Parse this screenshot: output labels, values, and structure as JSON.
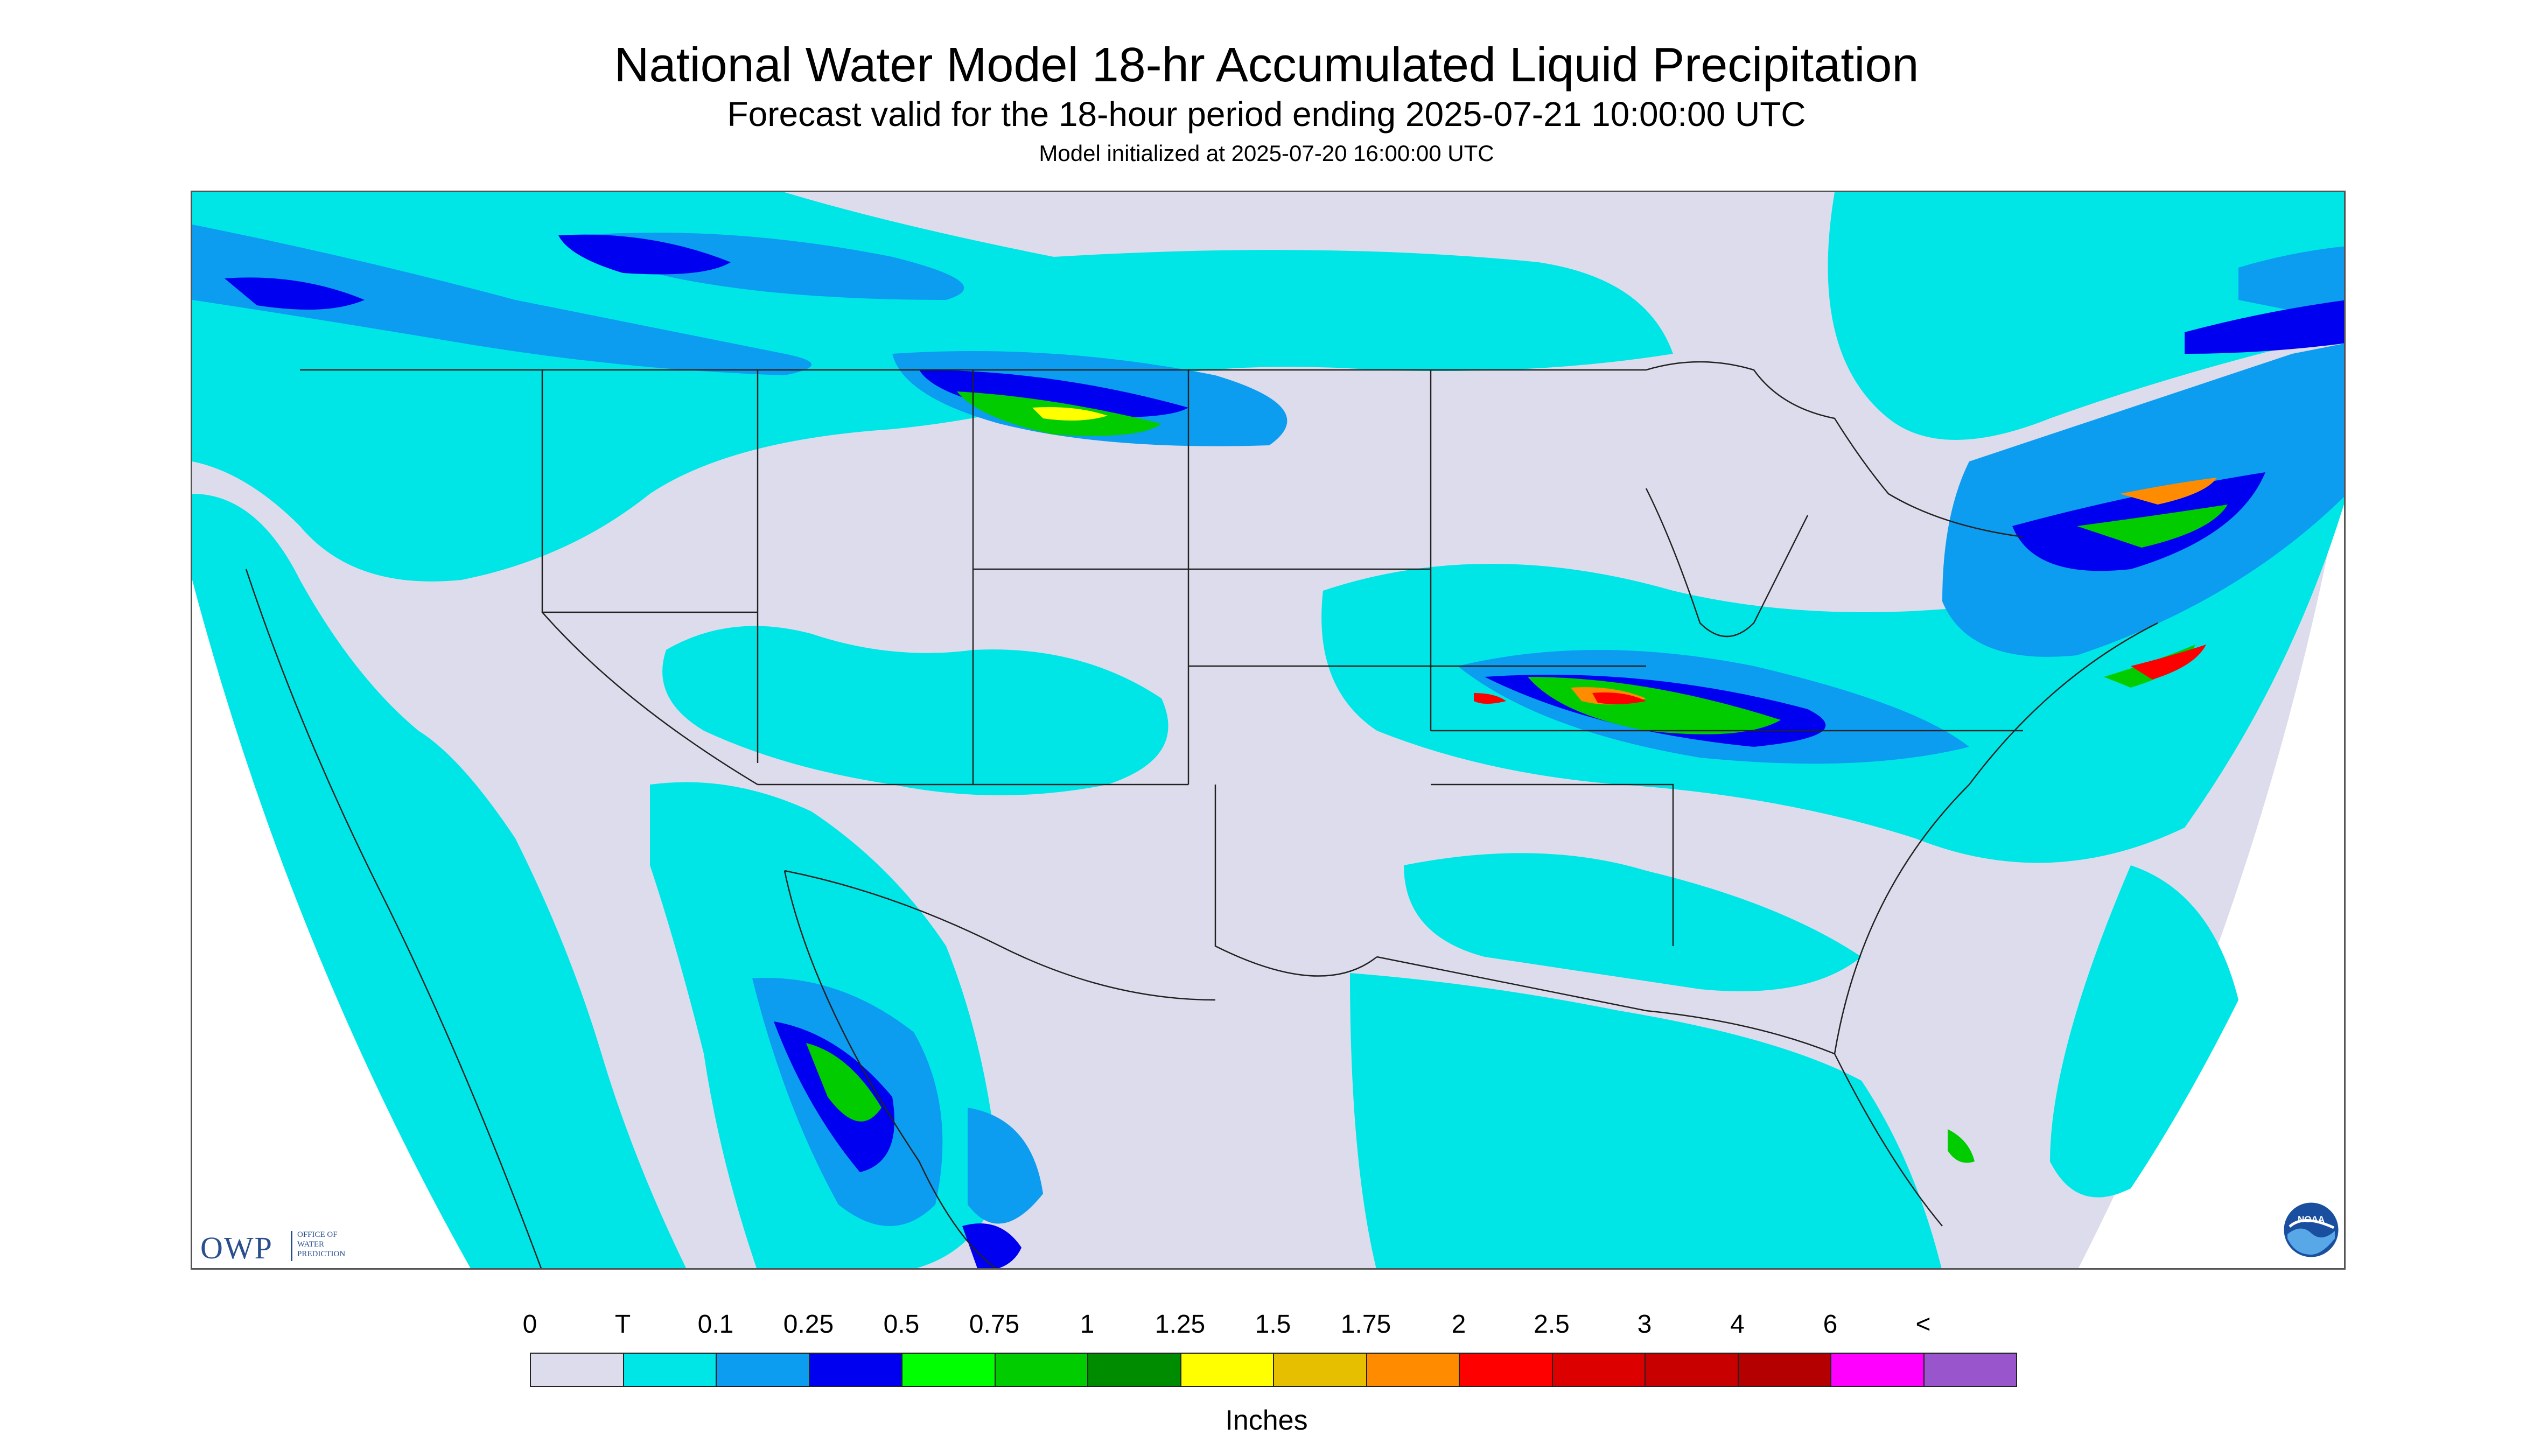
{
  "header": {
    "title": "National Water Model 18-hr Accumulated Liquid Precipitation",
    "subtitle": "Forecast valid for the 18-hour period ending 2025-07-21 10:00:00 UTC",
    "init_line": "Model initialized at 2025-07-20 16:00:00 UTC"
  },
  "logos": {
    "owp": {
      "letters": "OWP",
      "lines": [
        "OFFICE OF",
        "WATER",
        "PREDICTION"
      ]
    },
    "noaa": {
      "text": "NOAA"
    }
  },
  "legend": {
    "tick_labels": [
      "0",
      "T",
      "0.1",
      "0.25",
      "0.5",
      "0.75",
      "1",
      "1.25",
      "1.5",
      "1.75",
      "2",
      "2.5",
      "3",
      "4",
      "6",
      "<"
    ],
    "colors": [
      "#dcdcec",
      "#00e6e6",
      "#0c9cf0",
      "#0000f0",
      "#00ff00",
      "#00cc00",
      "#008c00",
      "#ffff00",
      "#e6c000",
      "#ff8c00",
      "#ff0000",
      "#dc0000",
      "#c80000",
      "#b40000",
      "#ff00ff",
      "#9955cc"
    ],
    "unit": "Inches"
  },
  "map_colors": {
    "no_precip": "#dcdcec",
    "trace": "#00e6e6",
    "light": "#0c9cf0",
    "moderate": "#0000f0",
    "heavy_green": "#00cc00",
    "very_heavy_red": "#ff0000",
    "yellow": "#ffff00",
    "orange": "#ff8c00",
    "border_lines": "#222222"
  }
}
